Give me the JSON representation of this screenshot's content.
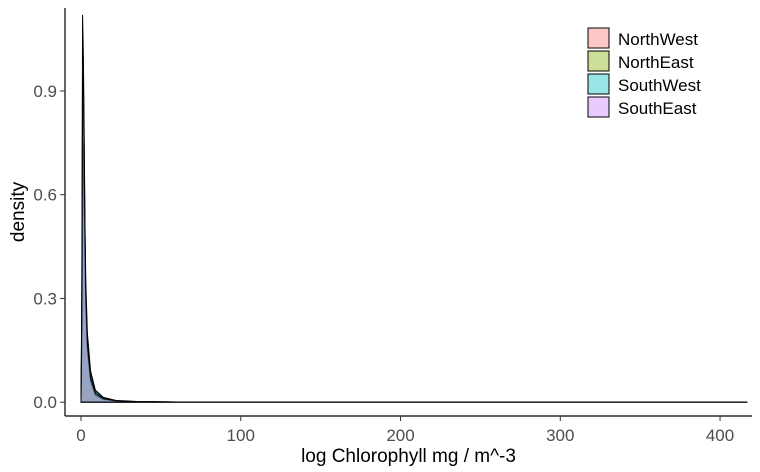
{
  "chart_data": {
    "type": "area",
    "title": "",
    "xlabel": "log Chlorophyll mg / m^-3",
    "ylabel": "density",
    "xlim": [
      -10,
      420
    ],
    "ylim": [
      -0.04,
      1.14
    ],
    "x_ticks": [
      0,
      100,
      200,
      300,
      400
    ],
    "y_ticks": [
      0.0,
      0.3,
      0.6,
      0.9
    ],
    "x_tick_labels": [
      "0",
      "100",
      "200",
      "300",
      "400"
    ],
    "y_tick_labels": [
      "0.0",
      "0.3",
      "0.6",
      "0.9"
    ],
    "grid": false,
    "legend_position": "top-right",
    "legend_outline": "#000000",
    "series": [
      {
        "name": "NorthWest",
        "color": "#f8766d",
        "points": [
          [
            0,
            0.0
          ],
          [
            0.5,
            0.2
          ],
          [
            1,
            0.85
          ],
          [
            1.5,
            0.86
          ],
          [
            2,
            0.7
          ],
          [
            2.5,
            0.45
          ],
          [
            3,
            0.3
          ],
          [
            4,
            0.18
          ],
          [
            6,
            0.08
          ],
          [
            9,
            0.03
          ],
          [
            14,
            0.012
          ],
          [
            22,
            0.004
          ],
          [
            35,
            0.0015
          ],
          [
            60,
            0.0005
          ],
          [
            120,
            0.0002
          ],
          [
            250,
            0.0001
          ],
          [
            417,
            0.0
          ]
        ]
      },
      {
        "name": "NorthEast",
        "color": "#7cae00",
        "points": [
          [
            0,
            0.0
          ],
          [
            0.5,
            0.15
          ],
          [
            1,
            0.5
          ],
          [
            1.5,
            0.75
          ],
          [
            2,
            0.6
          ],
          [
            2.5,
            0.4
          ],
          [
            3,
            0.28
          ],
          [
            4,
            0.15
          ],
          [
            6,
            0.06
          ],
          [
            9,
            0.02
          ],
          [
            14,
            0.008
          ],
          [
            22,
            0.003
          ],
          [
            35,
            0.001
          ],
          [
            60,
            0.0004
          ],
          [
            120,
            0.0001
          ],
          [
            250,
            0.0
          ],
          [
            417,
            0.0
          ]
        ]
      },
      {
        "name": "SouthWest",
        "color": "#00bfc4",
        "points": [
          [
            0,
            0.0
          ],
          [
            0.5,
            0.3
          ],
          [
            1,
            1.12
          ],
          [
            1.5,
            1.0
          ],
          [
            2,
            0.78
          ],
          [
            2.5,
            0.52
          ],
          [
            3,
            0.35
          ],
          [
            4,
            0.2
          ],
          [
            6,
            0.09
          ],
          [
            9,
            0.035
          ],
          [
            14,
            0.014
          ],
          [
            22,
            0.005
          ],
          [
            35,
            0.002
          ],
          [
            60,
            0.0006
          ],
          [
            120,
            0.0002
          ],
          [
            250,
            0.0001
          ],
          [
            417,
            0.0
          ]
        ]
      },
      {
        "name": "SouthEast",
        "color": "#c77cff",
        "points": [
          [
            0,
            0.0
          ],
          [
            0.5,
            0.25
          ],
          [
            1,
            0.9
          ],
          [
            1.5,
            0.95
          ],
          [
            2,
            0.72
          ],
          [
            2.5,
            0.5
          ],
          [
            3,
            0.32
          ],
          [
            4,
            0.17
          ],
          [
            6,
            0.07
          ],
          [
            9,
            0.025
          ],
          [
            14,
            0.01
          ],
          [
            22,
            0.004
          ],
          [
            35,
            0.0015
          ],
          [
            60,
            0.0005
          ],
          [
            120,
            0.0002
          ],
          [
            250,
            0.0
          ],
          [
            417,
            0.0
          ]
        ]
      }
    ]
  }
}
